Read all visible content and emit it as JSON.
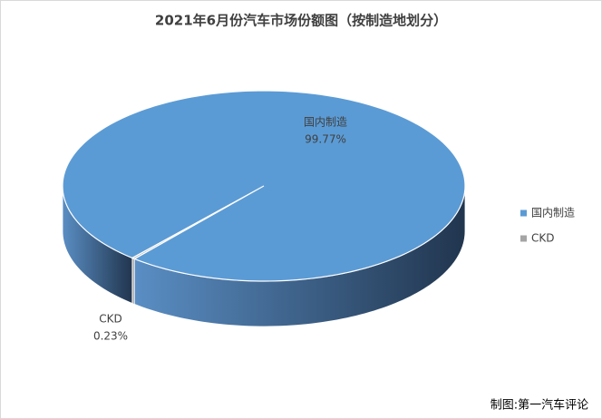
{
  "chart_data": {
    "type": "pie3d",
    "title": "2021年6月份汽车市场份额图（按制造地划分）",
    "categories": [
      "国内制造",
      "CKD"
    ],
    "values": [
      99.77,
      0.23
    ],
    "value_labels": [
      "99.77%",
      "0.23%"
    ],
    "colors": [
      "#5b9bd5",
      "#a5a5a5"
    ],
    "legend": "right",
    "source": "制图:第一汽车评论"
  }
}
